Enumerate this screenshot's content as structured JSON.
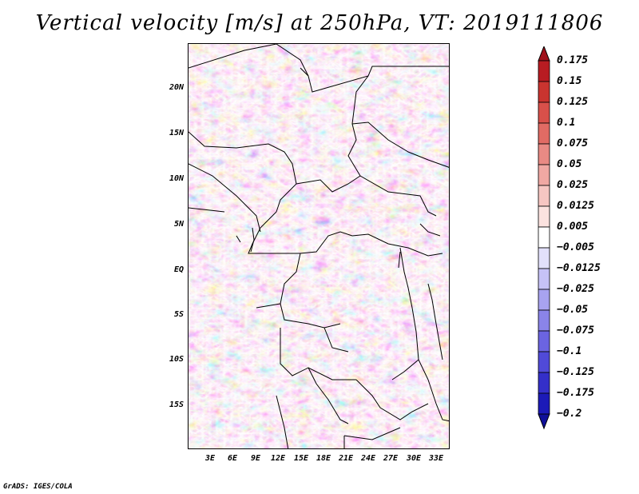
{
  "title": "Vertical velocity [m/s] at 250hPa, VT: 2019111806",
  "credit": "GrADS: IGES/COLA",
  "latitude_labels": [
    "20N",
    "15N",
    "10N",
    "5N",
    "EQ",
    "5S",
    "10S",
    "15S"
  ],
  "longitude_labels": [
    "3E",
    "6E",
    "9E",
    "12E",
    "15E",
    "18E",
    "21E",
    "24E",
    "27E",
    "30E",
    "33E"
  ],
  "colorbar": {
    "labels": [
      "0.175",
      "0.15",
      "0.125",
      "0.1",
      "0.075",
      "0.05",
      "0.025",
      "0.0125",
      "0.005",
      "−0.005",
      "−0.0125",
      "−0.025",
      "−0.05",
      "−0.075",
      "−0.1",
      "−0.125",
      "−0.175",
      "−0.2"
    ],
    "colors": [
      "#a0101a",
      "#b81c22",
      "#c9342f",
      "#d8504a",
      "#e16b64",
      "#e98a84",
      "#f0a8a3",
      "#f6c6c2",
      "#fbe2df",
      "#ffffff",
      "#e2e0fb",
      "#c6c2f6",
      "#a8a3f0",
      "#8a84e9",
      "#6b64e1",
      "#504ad8",
      "#342fc9",
      "#1c1ab8",
      "#10109a"
    ]
  }
}
